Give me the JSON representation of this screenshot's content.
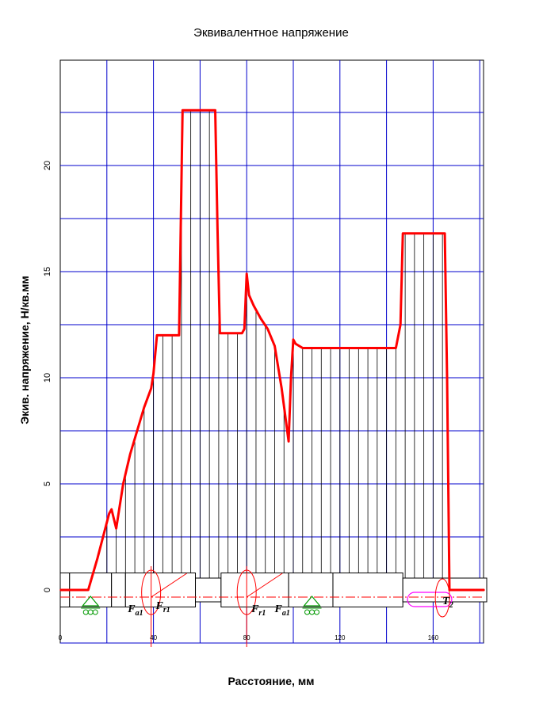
{
  "chart_data": {
    "type": "line",
    "title": "Эквивалентное напряжение",
    "xlabel": "Расстояние, мм",
    "ylabel": "Экив. напряжение, Н/кв.мм",
    "xlim": [
      0,
      182
    ],
    "ylim": [
      -2,
      25
    ],
    "yticks": [
      0,
      5,
      10,
      15,
      20
    ],
    "xticks": [
      0,
      40,
      80,
      120,
      160
    ],
    "grid": true,
    "grid_color": "#0000cc",
    "series": [
      {
        "color": "#ff0000",
        "x": [
          0,
          12,
          16,
          21,
          22,
          24,
          27,
          30,
          33,
          36,
          39,
          40,
          41.5,
          50,
          51,
          52.5,
          60,
          66.5,
          67.5,
          68.5,
          78,
          79,
          80,
          81,
          83,
          86,
          89,
          92,
          95,
          98,
          99,
          100,
          101,
          104,
          120,
          144,
          146,
          147,
          160,
          165,
          166,
          167,
          170,
          182
        ],
        "y": [
          0,
          0,
          1.5,
          3.6,
          3.8,
          2.9,
          5.0,
          6.4,
          7.5,
          8.6,
          9.5,
          10.2,
          12.0,
          12.0,
          12.0,
          22.6,
          22.6,
          22.6,
          17.0,
          12.1,
          12.1,
          12.3,
          14.9,
          13.9,
          13.4,
          12.8,
          12.3,
          11.5,
          9.5,
          7.0,
          10.0,
          11.8,
          11.6,
          11.4,
          11.4,
          11.4,
          12.5,
          16.8,
          16.8,
          16.8,
          10.0,
          0,
          0,
          0
        ]
      }
    ]
  },
  "load_labels": {
    "fa1_left_main": "F",
    "fa1_left_sub": "a1",
    "fr1_left_main": "F",
    "fr1_left_sub": "r1",
    "fr1_right_main": "F",
    "fr1_right_sub": "r1",
    "fa1_right_main": "F",
    "fa1_right_sub": "a1",
    "t2_main": "T",
    "t2_sub": "2"
  },
  "colors": {
    "curve": "#ff0000",
    "grid": "#0000cc",
    "hatch": "#000000",
    "support": "#009900",
    "torque": "#ff00ff",
    "shaft_outline": "#000000"
  }
}
